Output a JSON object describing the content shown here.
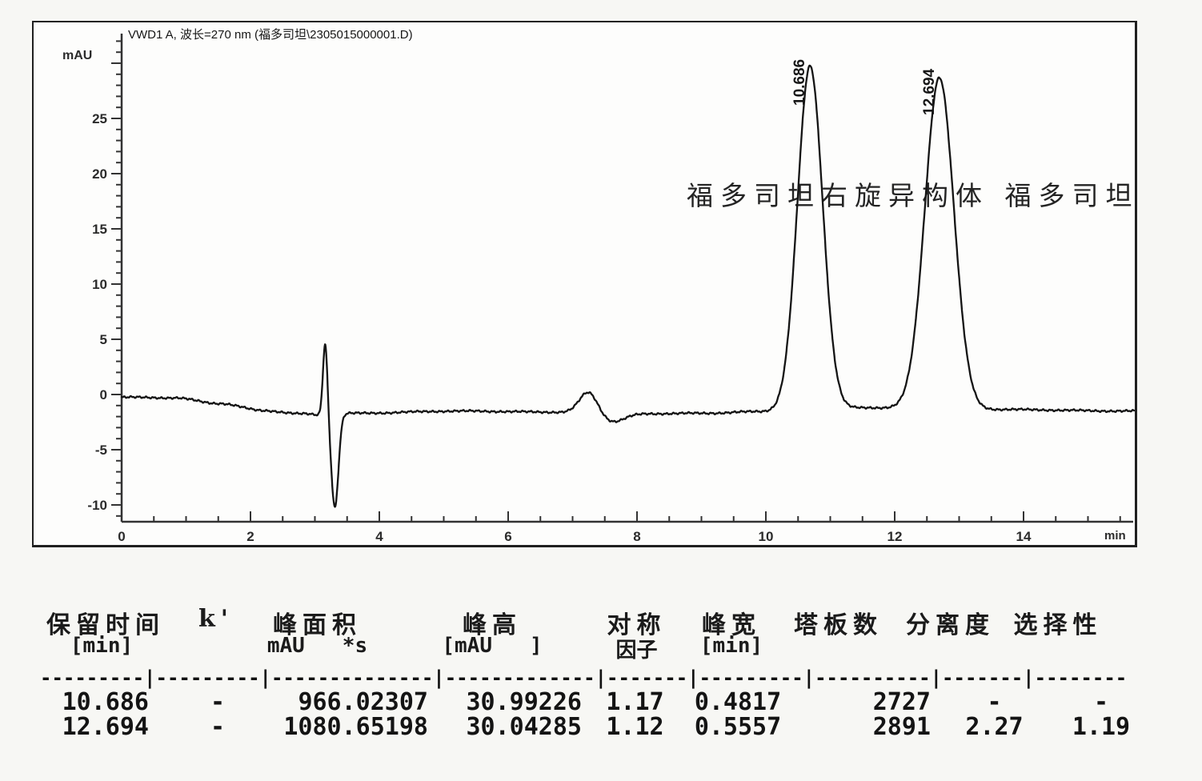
{
  "chart_data": {
    "type": "line",
    "title": "VWD1 A, 波长=270 nm (福多司坦\\2305015000001.D)",
    "ylabel": "mAU",
    "xlabel": "min",
    "xlim": [
      0,
      15.72
    ],
    "ylim": [
      -11.6,
      32.4
    ],
    "x_major_ticks": [
      0,
      2,
      4,
      6,
      8,
      10,
      12,
      14
    ],
    "x_minor_tick_step": 0.5,
    "y_major_ticks": [
      -10,
      -5,
      0,
      5,
      10,
      15,
      20,
      25
    ],
    "y_minor_tick_step": 1,
    "grid": false,
    "legend": null,
    "annotation": "福多司坦右旋异构体 福多司坦",
    "peaks": [
      {
        "label": "10.686",
        "retention_time_min": 10.686,
        "height_mAU": 30.99226,
        "compound": "福多司坦右旋异构体"
      },
      {
        "label": "12.694",
        "retention_time_min": 12.694,
        "height_mAU": 30.04285,
        "compound": "福多司坦"
      }
    ],
    "trace_model": {
      "baseline_anchors_min_mAU": [
        [
          0,
          -0.25
        ],
        [
          0.8,
          -0.3
        ],
        [
          1.5,
          -0.8
        ],
        [
          2.2,
          -1.45
        ],
        [
          2.8,
          -1.75
        ],
        [
          3.1,
          -1.85
        ],
        [
          3.6,
          -1.7
        ],
        [
          5.2,
          -1.5
        ],
        [
          6.9,
          -1.6
        ],
        [
          7.9,
          -1.75
        ],
        [
          9.0,
          -1.7
        ],
        [
          9.9,
          -1.55
        ],
        [
          10.8,
          -1.25
        ],
        [
          11.9,
          -1.2
        ],
        [
          13.5,
          -1.35
        ],
        [
          15.72,
          -1.5
        ]
      ],
      "peak_gaussians": [
        {
          "center_min": 10.686,
          "height_mAU": 31.0,
          "sigma_min": 0.195
        },
        {
          "center_min": 12.694,
          "height_mAU": 30.0,
          "sigma_min": 0.225
        }
      ],
      "disturbances": [
        {
          "center_min": 3.16,
          "height_mAU": 6.6,
          "sigma_min": 0.035
        },
        {
          "center_min": 3.31,
          "height_mAU": -8.4,
          "sigma_min": 0.055
        },
        {
          "center_min": 7.25,
          "height_mAU": 1.9,
          "sigma_min": 0.14
        },
        {
          "center_min": 7.62,
          "height_mAU": -0.75,
          "sigma_min": 0.18
        }
      ],
      "noise_mAU": 0.09
    },
    "colors": {
      "trace": "#141414",
      "axis": "#333333",
      "text": "#1f1f1f"
    }
  },
  "results_table": {
    "headers_line1": [
      "保留时间",
      "k'",
      "峰面积",
      "峰高",
      "对称",
      "峰宽",
      "塔板数",
      "分离度",
      "选择性"
    ],
    "headers_line2": [
      "[min]",
      "",
      "mAU   *s",
      "[mAU   ]",
      "因子",
      "[min]",
      "",
      "",
      ""
    ],
    "separator": "---------|---------|--------------|-------------|-------|---------|----------|-------|--------",
    "rows": [
      [
        "10.686",
        "-",
        "966.02307",
        "30.99226",
        "1.17",
        "0.4817",
        "2727",
        "-",
        "-"
      ],
      [
        "12.694",
        "-",
        "1080.65198",
        "30.04285",
        "1.12",
        "0.5557",
        "2891",
        "2.27",
        "1.19"
      ]
    ]
  }
}
